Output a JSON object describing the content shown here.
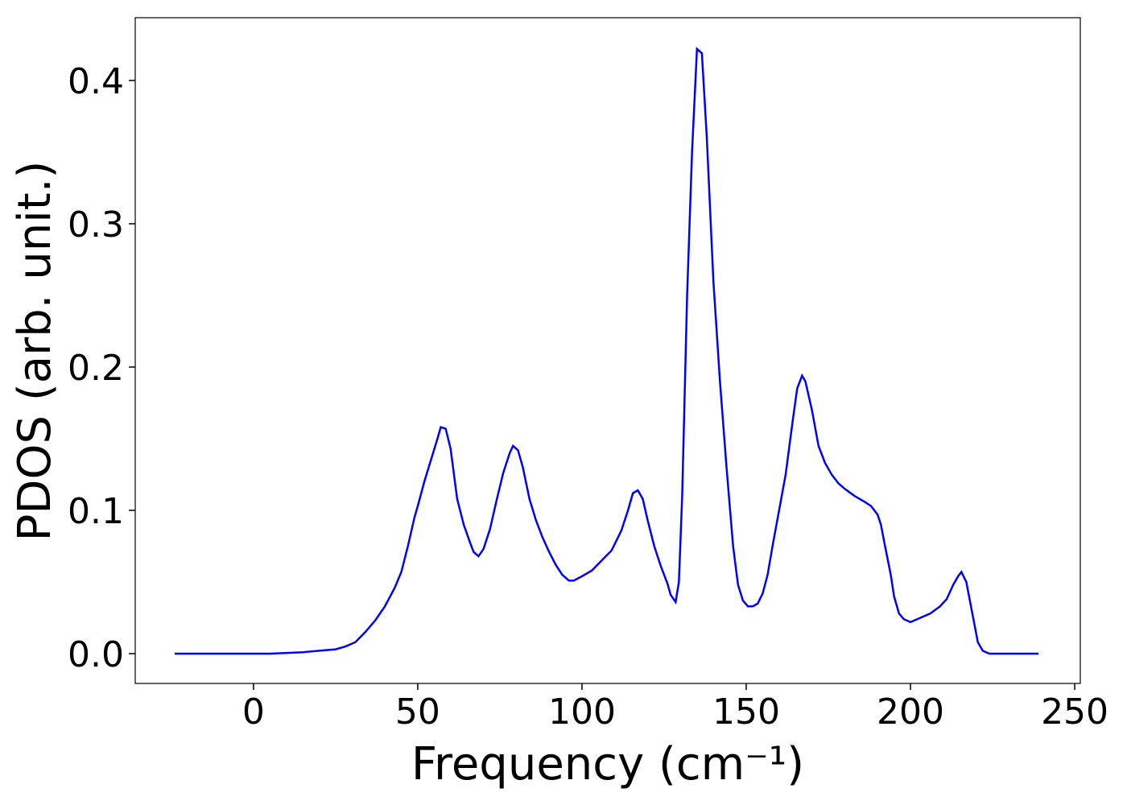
{
  "chart_data": {
    "type": "line",
    "xlabel": "Frequency (cm⁻¹)",
    "ylabel": "PDOS (arb. unit.)",
    "xlim": [
      -36,
      251.7
    ],
    "ylim": [
      -0.0208,
      0.4438
    ],
    "xticks": [
      0,
      50,
      100,
      150,
      200,
      250
    ],
    "yticks": [
      {
        "value": 0,
        "label": "0.0"
      },
      {
        "value": 0.1,
        "label": "0.1"
      },
      {
        "value": 0.2,
        "label": "0.2"
      },
      {
        "value": 0.3,
        "label": "0.3"
      },
      {
        "value": 0.4,
        "label": "0.4"
      }
    ],
    "x": [
      -24,
      0,
      5,
      10,
      15,
      20,
      25,
      28,
      31,
      34,
      37,
      40,
      43,
      45,
      47,
      49,
      50,
      52,
      54,
      56,
      57,
      58.5,
      60,
      62,
      64,
      66,
      67,
      68.5,
      70,
      72,
      74,
      76,
      78,
      79,
      80.5,
      82,
      84,
      86,
      88,
      90,
      92,
      94,
      96,
      97.5,
      100,
      103,
      106,
      109,
      112,
      114,
      115.5,
      117,
      118.5,
      120,
      122,
      124,
      126,
      127,
      128.5,
      129.5,
      130.5,
      132,
      133.5,
      135,
      136.5,
      138,
      140,
      142,
      144,
      146,
      147.5,
      149,
      150.5,
      152,
      153.5,
      155,
      156.5,
      158,
      160,
      162,
      164,
      165.5,
      167,
      168,
      170,
      172,
      174,
      176,
      178,
      180,
      183,
      186,
      188,
      190,
      191,
      192,
      194,
      195,
      196.5,
      198,
      200,
      203,
      206,
      209,
      211,
      213,
      214.5,
      215.5,
      217,
      218,
      219.5,
      220.5,
      222,
      224,
      230,
      239
    ],
    "series": [
      {
        "name": "PDOS",
        "color": "#0000ff",
        "values": [
          0,
          0,
          0,
          0.0005,
          0.001,
          0.002,
          0.003,
          0.005,
          0.008,
          0.015,
          0.023,
          0.033,
          0.046,
          0.057,
          0.075,
          0.095,
          0.103,
          0.12,
          0.135,
          0.15,
          0.158,
          0.157,
          0.143,
          0.108,
          0.09,
          0.077,
          0.071,
          0.068,
          0.073,
          0.087,
          0.107,
          0.126,
          0.14,
          0.145,
          0.142,
          0.13,
          0.108,
          0.093,
          0.081,
          0.071,
          0.062,
          0.055,
          0.051,
          0.051,
          0.054,
          0.058,
          0.065,
          0.072,
          0.086,
          0.1,
          0.112,
          0.114,
          0.108,
          0.093,
          0.075,
          0.061,
          0.049,
          0.041,
          0.036,
          0.05,
          0.11,
          0.25,
          0.35,
          0.422,
          0.419,
          0.36,
          0.26,
          0.19,
          0.13,
          0.075,
          0.048,
          0.037,
          0.033,
          0.033,
          0.035,
          0.042,
          0.055,
          0.075,
          0.1,
          0.125,
          0.16,
          0.185,
          0.194,
          0.19,
          0.17,
          0.145,
          0.133,
          0.125,
          0.119,
          0.115,
          0.11,
          0.106,
          0.103,
          0.097,
          0.09,
          0.078,
          0.055,
          0.04,
          0.028,
          0.024,
          0.022,
          0.025,
          0.028,
          0.033,
          0.038,
          0.048,
          0.054,
          0.057,
          0.05,
          0.038,
          0.02,
          0.008,
          0.002,
          0,
          0,
          0
        ]
      }
    ]
  }
}
